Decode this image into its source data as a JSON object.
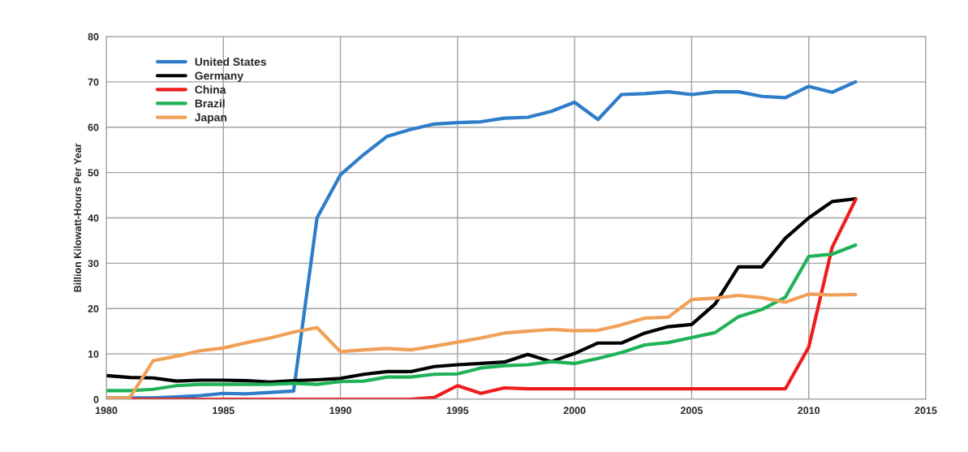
{
  "chart_data": {
    "type": "line",
    "ylabel": "Billion Kilowatt-Hours Per Year",
    "x": [
      1980,
      1981,
      1982,
      1983,
      1984,
      1985,
      1986,
      1987,
      1988,
      1989,
      1990,
      1991,
      1992,
      1993,
      1994,
      1995,
      1996,
      1997,
      1998,
      1999,
      2000,
      2001,
      2002,
      2003,
      2004,
      2005,
      2006,
      2007,
      2008,
      2009,
      2010,
      2011,
      2012
    ],
    "series": [
      {
        "name": "United States",
        "color": "#2e7dc8",
        "values": [
          0.3,
          0.3,
          0.3,
          0.5,
          0.8,
          1.3,
          1.2,
          1.5,
          1.8,
          40,
          49.5,
          54,
          58,
          59.5,
          60.7,
          61,
          61.2,
          62,
          62.2,
          63.5,
          65.5,
          61.7,
          67.2,
          67.4,
          67.8,
          67.2,
          67.8,
          67.8,
          66.8,
          66.5,
          69,
          67.7,
          70
        ]
      },
      {
        "name": "Germany",
        "color": "#000000",
        "values": [
          5.2,
          4.8,
          4.7,
          4.0,
          4.2,
          4.2,
          4.1,
          3.8,
          4.1,
          4.3,
          4.6,
          5.5,
          6.1,
          6.1,
          7.2,
          7.6,
          7.9,
          8.2,
          9.9,
          8.3,
          10.1,
          12.4,
          12.4,
          14.6,
          16.0,
          16.5,
          21,
          29.2,
          29.2,
          35.5,
          40,
          43.6,
          44.2
        ]
      },
      {
        "name": "China",
        "color": "#ee1c1c",
        "values": [
          0,
          0,
          0,
          0,
          0,
          0,
          0,
          0,
          0,
          0,
          0,
          0,
          0,
          0,
          0.4,
          3,
          1.3,
          2.5,
          2.3,
          2.3,
          2.3,
          2.3,
          2.3,
          2.3,
          2.3,
          2.3,
          2.3,
          2.3,
          2.3,
          2.3,
          11.5,
          33.5,
          44
        ]
      },
      {
        "name": "Brazil",
        "color": "#1fb257",
        "values": [
          1.9,
          1.9,
          2.2,
          3.0,
          3.3,
          3.3,
          3.3,
          3.3,
          3.5,
          3.3,
          3.9,
          4.0,
          4.9,
          4.9,
          5.5,
          5.6,
          6.9,
          7.4,
          7.6,
          8.3,
          7.9,
          9.0,
          10.3,
          12.0,
          12.5,
          13.6,
          14.7,
          18.2,
          19.8,
          22.5,
          31.5,
          32,
          34
        ]
      },
      {
        "name": "Japan",
        "color": "#f0a057",
        "values": [
          0.3,
          0.3,
          8.5,
          9.5,
          10.7,
          11.3,
          12.5,
          13.5,
          14.8,
          15.8,
          10.5,
          10.9,
          11.2,
          10.9,
          11.7,
          12.6,
          13.5,
          14.6,
          15.0,
          15.4,
          15.1,
          15.2,
          16.4,
          17.9,
          18.1,
          22,
          22.3,
          22.9,
          22.4,
          21.4,
          23.2,
          23,
          23.1
        ]
      }
    ],
    "xlim": [
      1980,
      2015
    ],
    "xticks": [
      1980,
      1985,
      1990,
      1995,
      2000,
      2005,
      2010,
      2015
    ],
    "ylim": [
      0,
      80
    ],
    "yticks": [
      0,
      10,
      20,
      30,
      40,
      50,
      60,
      70,
      80
    ],
    "grid": true,
    "legend": "top left",
    "line_style": "solid",
    "marker": "none"
  }
}
